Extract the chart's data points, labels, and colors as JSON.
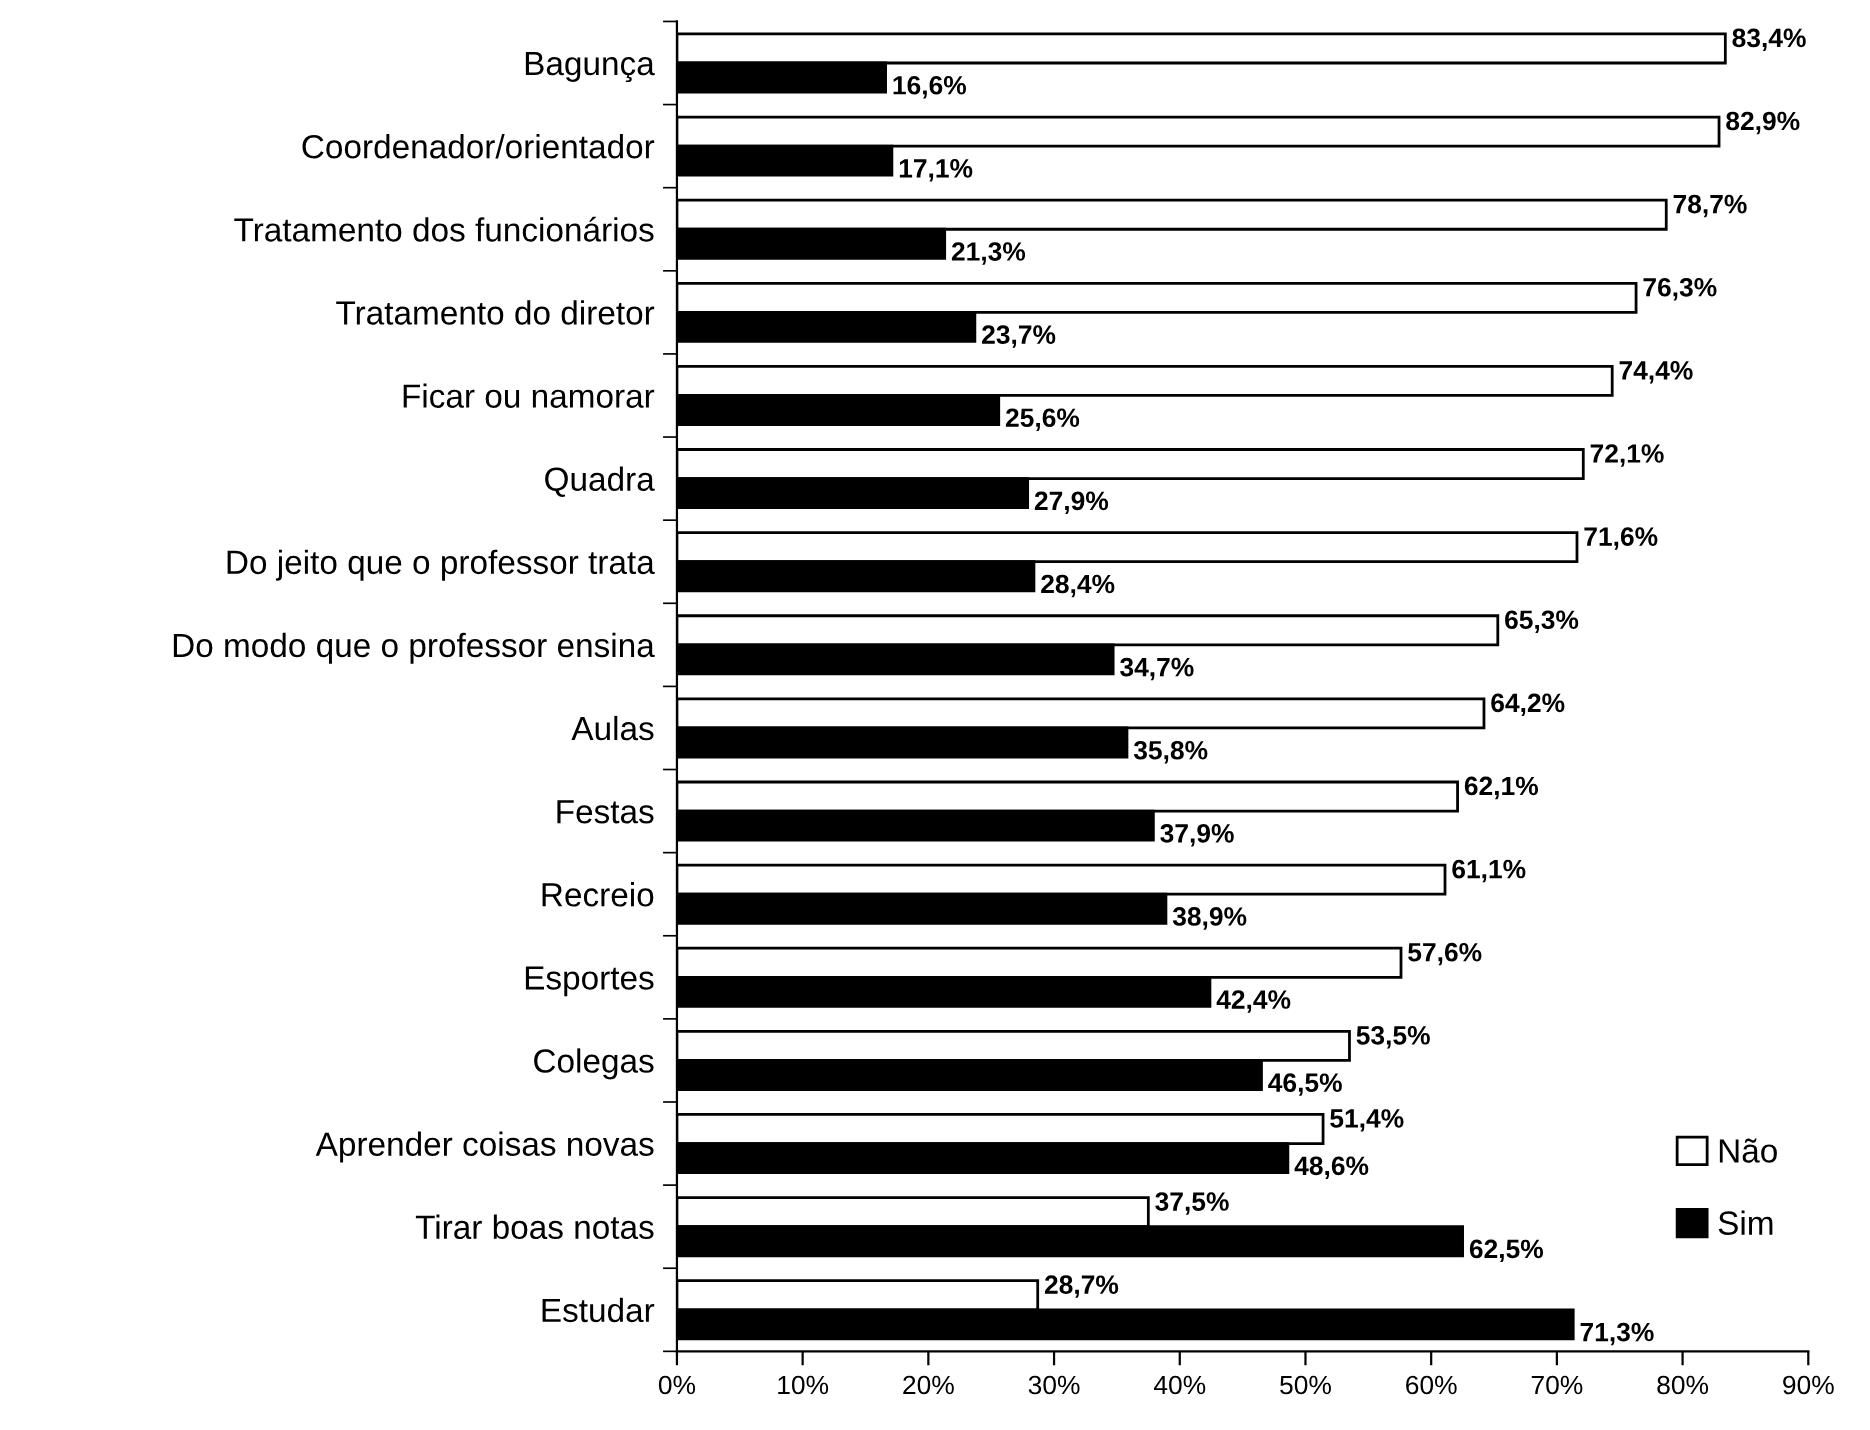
{
  "chart_data": {
    "type": "bar",
    "orientation": "horizontal",
    "categories": [
      "Bagunça",
      "Coordenador/orientador",
      "Tratamento dos funcionários",
      "Tratamento do diretor",
      "Ficar ou namorar",
      "Quadra",
      "Do jeito que o professor trata",
      "Do modo que o professor ensina",
      "Aulas",
      "Festas",
      "Recreio",
      "Esportes",
      "Colegas",
      "Aprender coisas novas",
      "Tirar boas notas",
      "Estudar"
    ],
    "series": [
      {
        "name": "Não",
        "color": "#ffffff",
        "values": [
          83.4,
          82.9,
          78.7,
          76.3,
          74.4,
          72.1,
          71.6,
          65.3,
          64.2,
          62.1,
          61.1,
          57.6,
          53.5,
          51.4,
          37.5,
          28.7
        ],
        "value_labels": [
          "83,4%",
          "82,9%",
          "78,7%",
          "76,3%",
          "74,4%",
          "72,1%",
          "71,6%",
          "65,3%",
          "64,2%",
          "62,1%",
          "61,1%",
          "57,6%",
          "53,5%",
          "51,4%",
          "37,5%",
          "28,7%"
        ]
      },
      {
        "name": "Sim",
        "color": "#000000",
        "values": [
          16.6,
          17.1,
          21.3,
          23.7,
          25.6,
          27.9,
          28.4,
          34.7,
          35.8,
          37.9,
          38.9,
          42.4,
          46.5,
          48.6,
          62.5,
          71.3
        ],
        "value_labels": [
          "16,6%",
          "17,1%",
          "21,3%",
          "23,7%",
          "25,6%",
          "27,9%",
          "28,4%",
          "34,7%",
          "35,8%",
          "37,9%",
          "38,9%",
          "42,4%",
          "46,5%",
          "48,6%",
          "62,5%",
          "71,3%"
        ]
      }
    ],
    "xlim": [
      0,
      90
    ],
    "xticks": [
      {
        "value": 0,
        "label": "0%"
      },
      {
        "value": 10,
        "label": "10%"
      },
      {
        "value": 20,
        "label": "20%"
      },
      {
        "value": 30,
        "label": "30%"
      },
      {
        "value": 40,
        "label": "40%"
      },
      {
        "value": 50,
        "label": "50%"
      },
      {
        "value": 60,
        "label": "60%"
      },
      {
        "value": 70,
        "label": "70%"
      },
      {
        "value": 80,
        "label": "80%"
      },
      {
        "value": 90,
        "label": "90%"
      }
    ],
    "grid": false,
    "legend": "bottom right"
  }
}
